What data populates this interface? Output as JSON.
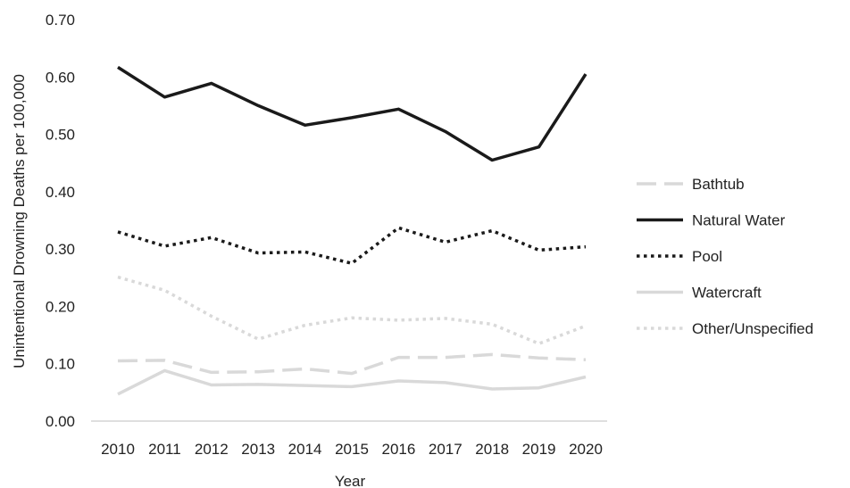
{
  "chart_data": {
    "type": "line",
    "title": "",
    "xlabel": "Year",
    "ylabel": "Unintentional Drowning Deaths per 100,000",
    "ylim": [
      0,
      0.7
    ],
    "ytick_labels": [
      "0.00",
      "0.10",
      "0.20",
      "0.30",
      "0.40",
      "0.50",
      "0.60",
      "0.70"
    ],
    "x": [
      "2010",
      "2011",
      "2012",
      "2013",
      "2014",
      "2015",
      "2016",
      "2017",
      "2018",
      "2019",
      "2020"
    ],
    "grid": false,
    "legend_position": "right",
    "series": [
      {
        "name": "Bathtub",
        "style": "dashed",
        "color": "#d9d9d9",
        "values": [
          0.105,
          0.106,
          0.085,
          0.086,
          0.091,
          0.083,
          0.111,
          0.111,
          0.116,
          0.11,
          0.107
        ]
      },
      {
        "name": "Natural Water",
        "style": "solid",
        "color": "#1a1a1a",
        "values": [
          0.617,
          0.565,
          0.589,
          0.55,
          0.516,
          0.529,
          0.544,
          0.505,
          0.455,
          0.478,
          0.605
        ]
      },
      {
        "name": "Pool",
        "style": "dotted",
        "color": "#1a1a1a",
        "values": [
          0.33,
          0.305,
          0.32,
          0.293,
          0.295,
          0.275,
          0.337,
          0.312,
          0.332,
          0.298,
          0.304
        ]
      },
      {
        "name": "Watercraft",
        "style": "solid",
        "color": "#d9d9d9",
        "values": [
          0.047,
          0.088,
          0.063,
          0.064,
          0.062,
          0.06,
          0.07,
          0.067,
          0.056,
          0.058,
          0.077
        ]
      },
      {
        "name": "Other/Unspecified",
        "style": "dotted",
        "color": "#d9d9d9",
        "values": [
          0.251,
          0.228,
          0.183,
          0.143,
          0.167,
          0.18,
          0.176,
          0.179,
          0.169,
          0.135,
          0.166
        ]
      }
    ]
  }
}
